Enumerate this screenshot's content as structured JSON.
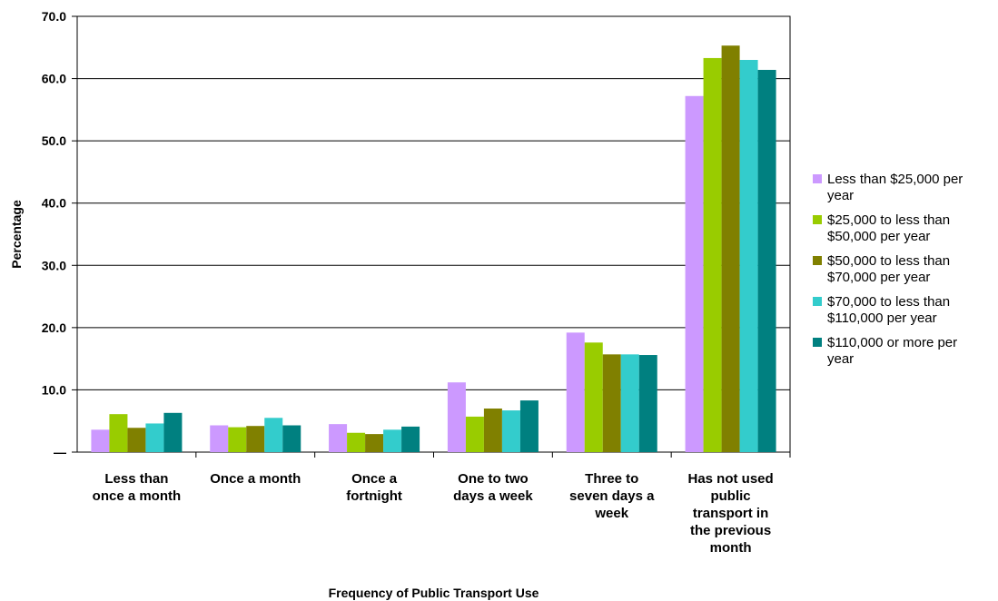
{
  "chart_data": {
    "type": "bar",
    "title": "",
    "xlabel": "Frequency of Public Transport Use",
    "ylabel": "Percentage",
    "ylim": [
      0,
      70
    ],
    "yticks": [
      0,
      10,
      20,
      30,
      40,
      50,
      60,
      70
    ],
    "ytick_labels": [
      "—",
      "10.0",
      "20.0",
      "30.0",
      "40.0",
      "50.0",
      "60.0",
      "70.0"
    ],
    "grid": true,
    "legend_position": "right",
    "categories": [
      [
        "Less than",
        "once a month"
      ],
      [
        "Once a month"
      ],
      [
        "Once a",
        "fortnight"
      ],
      [
        "One to two",
        "days a week"
      ],
      [
        "Three to",
        "seven days a",
        "week"
      ],
      [
        "Has not used",
        "public",
        "transport in",
        "the previous",
        "month"
      ]
    ],
    "series": [
      {
        "name": [
          "Less than $25,000 per",
          "year"
        ],
        "color": "#cc99ff",
        "values": [
          3.6,
          4.3,
          4.5,
          11.2,
          19.2,
          57.2
        ]
      },
      {
        "name": [
          "$25,000 to less than",
          "$50,000 per year"
        ],
        "color": "#99cc00",
        "values": [
          6.1,
          4.0,
          3.1,
          5.7,
          17.6,
          63.3
        ]
      },
      {
        "name": [
          "$50,000 to less than",
          "$70,000 per year"
        ],
        "color": "#808000",
        "values": [
          3.9,
          4.2,
          2.9,
          7.0,
          15.7,
          65.3
        ]
      },
      {
        "name": [
          "$70,000 to less than",
          "$110,000 per year"
        ],
        "color": "#33cccc",
        "values": [
          4.6,
          5.5,
          3.6,
          6.7,
          15.7,
          63.0
        ]
      },
      {
        "name": [
          "$110,000 or more per",
          "year"
        ],
        "color": "#008080",
        "values": [
          6.3,
          4.3,
          4.1,
          8.3,
          15.6,
          61.4
        ]
      }
    ]
  }
}
